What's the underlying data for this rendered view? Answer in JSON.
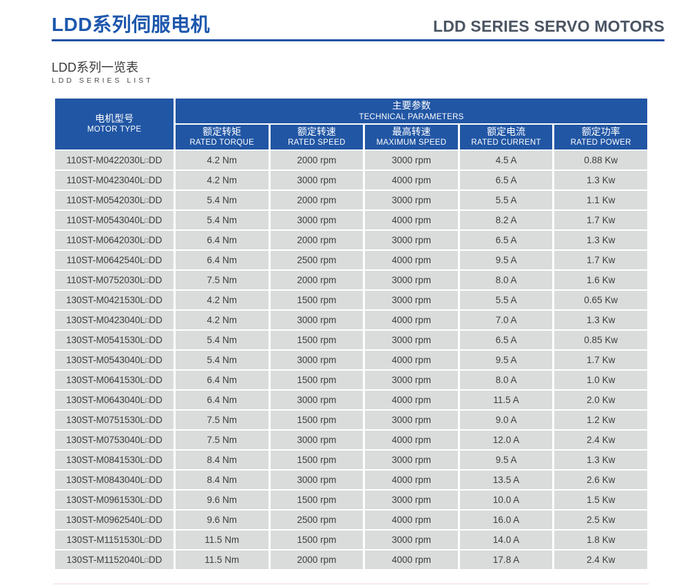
{
  "page": {
    "title_cn": "LDD系列伺服电机",
    "title_en": "LDD SERIES SERVO MOTORS",
    "subtitle_cn": "LDD系列一览表",
    "subtitle_en": "LDD SERIES LIST"
  },
  "colors": {
    "accent_blue_header": "#2156a4",
    "title_blue": "#1d57ad",
    "rule_blue": "#1d4fa0",
    "title_en_gray": "#4b5563",
    "cell_gray": "#d9dcda"
  },
  "table": {
    "motor_type_header": {
      "cn": "电机型号",
      "en": "MOTOR TYPE"
    },
    "group_header": {
      "cn": "主要参数",
      "en": "TECHNICAL PARAMETERS"
    },
    "columns": [
      {
        "cn": "额定转矩",
        "en": "RATED TORQUE"
      },
      {
        "cn": "额定转速",
        "en": "RATED SPEED"
      },
      {
        "cn": "最高转速",
        "en": "MAXIMUM SPEED"
      },
      {
        "cn": "额定电流",
        "en": "RATED CURRENT"
      },
      {
        "cn": "额定功率",
        "en": "RATED POWER"
      }
    ],
    "rows": [
      {
        "model": "110ST-M0422030L□DD",
        "torque": "4.2 Nm",
        "speed": "2000 rpm",
        "max_speed": "3000 rpm",
        "current": "4.5 A",
        "power": "0.88 Kw"
      },
      {
        "model": "110ST-M0423040L□DD",
        "torque": "4.2 Nm",
        "speed": "3000 rpm",
        "max_speed": "4000 rpm",
        "current": "6.5 A",
        "power": "1.3 Kw"
      },
      {
        "model": "110ST-M0542030L□DD",
        "torque": "5.4 Nm",
        "speed": "2000 rpm",
        "max_speed": "3000 rpm",
        "current": "5.5 A",
        "power": "1.1 Kw"
      },
      {
        "model": "110ST-M0543040L□DD",
        "torque": "5.4 Nm",
        "speed": "3000 rpm",
        "max_speed": "4000 rpm",
        "current": "8.2 A",
        "power": "1.7 Kw"
      },
      {
        "model": "110ST-M0642030L□DD",
        "torque": "6.4 Nm",
        "speed": "2000 rpm",
        "max_speed": "3000 rpm",
        "current": "6.5 A",
        "power": "1.3 Kw"
      },
      {
        "model": "110ST-M0642540L□DD",
        "torque": "6.4 Nm",
        "speed": "2500 rpm",
        "max_speed": "4000 rpm",
        "current": "9.5 A",
        "power": "1.7 Kw"
      },
      {
        "model": "110ST-M0752030L□DD",
        "torque": "7.5 Nm",
        "speed": "2000 rpm",
        "max_speed": "3000 rpm",
        "current": "8.0 A",
        "power": "1.6 Kw"
      },
      {
        "model": "130ST-M0421530L□DD",
        "torque": "4.2 Nm",
        "speed": "1500 rpm",
        "max_speed": "3000 rpm",
        "current": "5.5 A",
        "power": "0.65 Kw"
      },
      {
        "model": "130ST-M0423040L□DD",
        "torque": "4.2 Nm",
        "speed": "3000 rpm",
        "max_speed": "4000 rpm",
        "current": "7.0 A",
        "power": "1.3 Kw"
      },
      {
        "model": "130ST-M0541530L□DD",
        "torque": "5.4 Nm",
        "speed": "1500 rpm",
        "max_speed": "3000 rpm",
        "current": "6.5 A",
        "power": "0.85 Kw"
      },
      {
        "model": "130ST-M0543040L□DD",
        "torque": "5.4 Nm",
        "speed": "3000 rpm",
        "max_speed": "4000 rpm",
        "current": "9.5 A",
        "power": "1.7 Kw"
      },
      {
        "model": "130ST-M0641530L□DD",
        "torque": "6.4 Nm",
        "speed": "1500 rpm",
        "max_speed": "3000 rpm",
        "current": "8.0 A",
        "power": "1.0 Kw"
      },
      {
        "model": "130ST-M0643040L□DD",
        "torque": "6.4 Nm",
        "speed": "3000 rpm",
        "max_speed": "4000 rpm",
        "current": "11.5 A",
        "power": "2.0 Kw"
      },
      {
        "model": "130ST-M0751530L□DD",
        "torque": "7.5 Nm",
        "speed": "1500 rpm",
        "max_speed": "3000 rpm",
        "current": "9.0 A",
        "power": "1.2 Kw"
      },
      {
        "model": "130ST-M0753040L□DD",
        "torque": "7.5 Nm",
        "speed": "3000 rpm",
        "max_speed": "4000 rpm",
        "current": "12.0 A",
        "power": "2.4 Kw"
      },
      {
        "model": "130ST-M0841530L□DD",
        "torque": "8.4 Nm",
        "speed": "1500 rpm",
        "max_speed": "3000 rpm",
        "current": "9.5 A",
        "power": "1.3 Kw"
      },
      {
        "model": "130ST-M0843040L□DD",
        "torque": "8.4 Nm",
        "speed": "3000 rpm",
        "max_speed": "4000 rpm",
        "current": "13.5 A",
        "power": "2.6 Kw"
      },
      {
        "model": "130ST-M0961530L□DD",
        "torque": "9.6 Nm",
        "speed": "1500 rpm",
        "max_speed": "3000 rpm",
        "current": "10.0 A",
        "power": "1.5 Kw"
      },
      {
        "model": "130ST-M0962540L□DD",
        "torque": "9.6 Nm",
        "speed": "2500 rpm",
        "max_speed": "4000 rpm",
        "current": "16.0 A",
        "power": "2.5 Kw"
      },
      {
        "model": "130ST-M1151530L□DD",
        "torque": "11.5 Nm",
        "speed": "1500 rpm",
        "max_speed": "3000 rpm",
        "current": "14.0 A",
        "power": "1.8 Kw"
      },
      {
        "model": "130ST-M1152040L□DD",
        "torque": "11.5 Nm",
        "speed": "2000 rpm",
        "max_speed": "4000 rpm",
        "current": "17.8 A",
        "power": "2.4 Kw"
      }
    ]
  }
}
